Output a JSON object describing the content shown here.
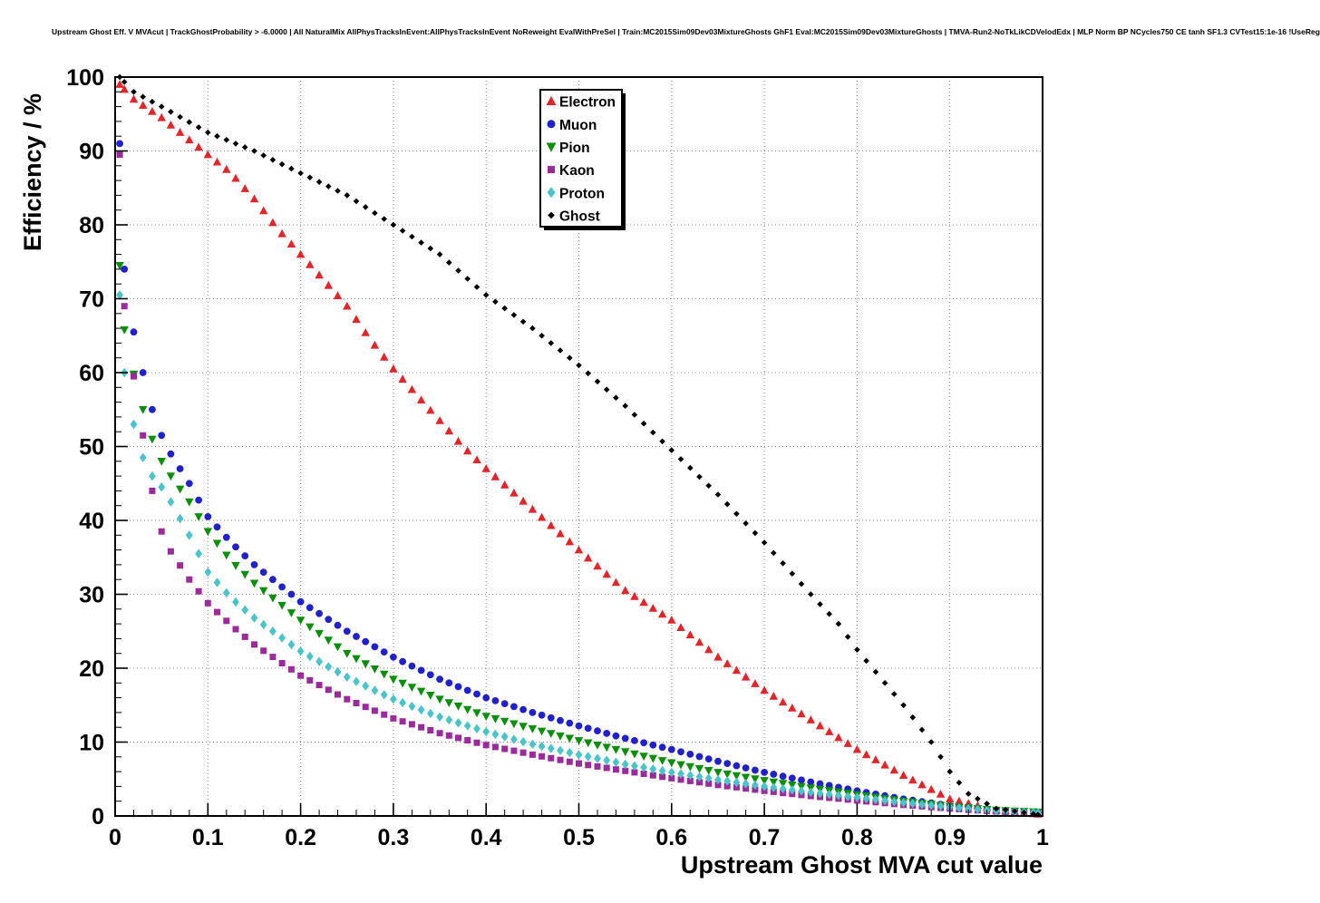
{
  "title": "Upstream Ghost Eff. V MVAcut | TrackGhostProbability > -6.0000 | All NaturalMix AllPhysTracksInEvent:AllPhysTracksInEvent NoReweight EvalWithPreSel | Train:MC2015Sim09Dev03MixtureGhosts GhF1 Eval:MC2015Sim09Dev03MixtureGhosts | TMVA-Run2-NoTkLikCDVelodEdx | MLP Norm BP NCycles750 CE tanh SF1.3 CVTest15:1e-16 !UseReg",
  "chart_data": {
    "type": "scatter",
    "xlabel": "Upstream Ghost MVA cut value",
    "ylabel": "Efficiency / %",
    "xlim": [
      0,
      1
    ],
    "ylim": [
      0,
      100
    ],
    "xticks": [
      "0",
      "0.1",
      "0.2",
      "0.3",
      "0.4",
      "0.5",
      "0.6",
      "0.7",
      "0.8",
      "0.9",
      "1"
    ],
    "yticks": [
      "0",
      "10",
      "20",
      "30",
      "40",
      "50",
      "60",
      "70",
      "80",
      "90",
      "100"
    ],
    "grid": true,
    "grid_style": "dotted",
    "legend_position": "top-center",
    "frame_color": "#000000",
    "grid_color": "#8a8a8a",
    "series": [
      {
        "name": "Electron",
        "marker": "triangle-up",
        "color": "#e3252a",
        "points": [
          [
            0.005,
            99
          ],
          [
            0.02,
            97
          ],
          [
            0.05,
            94.5
          ],
          [
            0.08,
            91.5
          ],
          [
            0.1,
            89.5
          ],
          [
            0.125,
            87
          ],
          [
            0.15,
            83.5
          ],
          [
            0.175,
            79.5
          ],
          [
            0.2,
            76
          ],
          [
            0.225,
            72.5
          ],
          [
            0.25,
            69
          ],
          [
            0.275,
            64.5
          ],
          [
            0.3,
            60.5
          ],
          [
            0.325,
            57
          ],
          [
            0.35,
            53.5
          ],
          [
            0.375,
            50
          ],
          [
            0.4,
            47
          ],
          [
            0.45,
            41.5
          ],
          [
            0.5,
            36
          ],
          [
            0.55,
            30.5
          ],
          [
            0.6,
            26.5
          ],
          [
            0.65,
            21.5
          ],
          [
            0.7,
            17
          ],
          [
            0.75,
            13
          ],
          [
            0.8,
            9
          ],
          [
            0.85,
            5.5
          ],
          [
            0.9,
            2.3
          ],
          [
            0.95,
            0.8
          ],
          [
            1,
            0.2
          ]
        ]
      },
      {
        "name": "Muon",
        "marker": "circle",
        "color": "#2020cc",
        "points": [
          [
            0.005,
            91
          ],
          [
            0.01,
            74
          ],
          [
            0.02,
            65.5
          ],
          [
            0.03,
            60
          ],
          [
            0.04,
            55
          ],
          [
            0.05,
            51.5
          ],
          [
            0.06,
            49
          ],
          [
            0.08,
            45
          ],
          [
            0.1,
            40.5
          ],
          [
            0.125,
            37
          ],
          [
            0.15,
            34
          ],
          [
            0.2,
            29
          ],
          [
            0.25,
            25
          ],
          [
            0.3,
            21.5
          ],
          [
            0.35,
            18.5
          ],
          [
            0.4,
            16
          ],
          [
            0.45,
            14
          ],
          [
            0.5,
            12.2
          ],
          [
            0.55,
            10.5
          ],
          [
            0.6,
            9
          ],
          [
            0.65,
            7.4
          ],
          [
            0.7,
            5.9
          ],
          [
            0.75,
            4.6
          ],
          [
            0.8,
            3.4
          ],
          [
            0.85,
            2.3
          ],
          [
            0.9,
            1.4
          ],
          [
            0.95,
            0.8
          ],
          [
            1,
            0.4
          ]
        ]
      },
      {
        "name": "Pion",
        "marker": "triangle-down",
        "color": "#0a8f0a",
        "points": [
          [
            0.005,
            74.5
          ],
          [
            0.01,
            65.8
          ],
          [
            0.02,
            59.8
          ],
          [
            0.03,
            55
          ],
          [
            0.04,
            51
          ],
          [
            0.05,
            48
          ],
          [
            0.06,
            46
          ],
          [
            0.08,
            42.5
          ],
          [
            0.1,
            38.5
          ],
          [
            0.125,
            34.5
          ],
          [
            0.15,
            31.5
          ],
          [
            0.2,
            26.5
          ],
          [
            0.25,
            22
          ],
          [
            0.3,
            18.5
          ],
          [
            0.35,
            15.8
          ],
          [
            0.4,
            13.5
          ],
          [
            0.45,
            11.8
          ],
          [
            0.5,
            10.2
          ],
          [
            0.55,
            8.7
          ],
          [
            0.6,
            7.2
          ],
          [
            0.65,
            5.9
          ],
          [
            0.7,
            4.8
          ],
          [
            0.75,
            3.8
          ],
          [
            0.8,
            2.9
          ],
          [
            0.85,
            2
          ],
          [
            0.9,
            1.3
          ],
          [
            0.95,
            0.8
          ],
          [
            1,
            0.5
          ]
        ]
      },
      {
        "name": "Kaon",
        "marker": "square",
        "color": "#9c2a9c",
        "points": [
          [
            0.005,
            89.5
          ],
          [
            0.01,
            69
          ],
          [
            0.02,
            59.5
          ],
          [
            0.03,
            51.5
          ],
          [
            0.04,
            44
          ],
          [
            0.05,
            38.5
          ],
          [
            0.06,
            35.8
          ],
          [
            0.08,
            32
          ],
          [
            0.1,
            28.8
          ],
          [
            0.125,
            25.8
          ],
          [
            0.15,
            23.2
          ],
          [
            0.2,
            19
          ],
          [
            0.25,
            15.8
          ],
          [
            0.3,
            13.2
          ],
          [
            0.35,
            11.2
          ],
          [
            0.4,
            9.6
          ],
          [
            0.45,
            8.3
          ],
          [
            0.5,
            7.1
          ],
          [
            0.55,
            6.1
          ],
          [
            0.6,
            5.1
          ],
          [
            0.65,
            4.2
          ],
          [
            0.7,
            3.4
          ],
          [
            0.75,
            2.7
          ],
          [
            0.8,
            2.1
          ],
          [
            0.85,
            1.5
          ],
          [
            0.9,
            1
          ],
          [
            0.95,
            0.6
          ],
          [
            1,
            0.3
          ]
        ]
      },
      {
        "name": "Proton",
        "marker": "diamond",
        "color": "#49c4c8",
        "points": [
          [
            0.005,
            70.5
          ],
          [
            0.01,
            60
          ],
          [
            0.02,
            53
          ],
          [
            0.03,
            48.5
          ],
          [
            0.04,
            46
          ],
          [
            0.05,
            44.5
          ],
          [
            0.06,
            42.5
          ],
          [
            0.08,
            38
          ],
          [
            0.1,
            33
          ],
          [
            0.125,
            29.5
          ],
          [
            0.15,
            26.8
          ],
          [
            0.2,
            22.3
          ],
          [
            0.25,
            18.8
          ],
          [
            0.3,
            15.8
          ],
          [
            0.35,
            13.4
          ],
          [
            0.4,
            11.4
          ],
          [
            0.45,
            9.7
          ],
          [
            0.5,
            8.3
          ],
          [
            0.55,
            7
          ],
          [
            0.6,
            5.9
          ],
          [
            0.65,
            4.9
          ],
          [
            0.7,
            4
          ],
          [
            0.75,
            3.2
          ],
          [
            0.8,
            2.5
          ],
          [
            0.85,
            1.8
          ],
          [
            0.9,
            1.2
          ],
          [
            0.95,
            0.7
          ],
          [
            1,
            0.4
          ]
        ]
      },
      {
        "name": "Ghost",
        "marker": "small-diamond",
        "color": "#000000",
        "points": [
          [
            0.005,
            100
          ],
          [
            0.02,
            98
          ],
          [
            0.05,
            96
          ],
          [
            0.1,
            92.5
          ],
          [
            0.15,
            90
          ],
          [
            0.2,
            87
          ],
          [
            0.25,
            84
          ],
          [
            0.3,
            80
          ],
          [
            0.35,
            76
          ],
          [
            0.4,
            70.5
          ],
          [
            0.45,
            66
          ],
          [
            0.5,
            61
          ],
          [
            0.55,
            55.5
          ],
          [
            0.6,
            49.5
          ],
          [
            0.65,
            43.5
          ],
          [
            0.7,
            37
          ],
          [
            0.75,
            30
          ],
          [
            0.78,
            26
          ],
          [
            0.8,
            22.5
          ],
          [
            0.83,
            18
          ],
          [
            0.85,
            15
          ],
          [
            0.88,
            10
          ],
          [
            0.9,
            6
          ],
          [
            0.92,
            3
          ],
          [
            0.95,
            1
          ],
          [
            1,
            0.1
          ]
        ]
      }
    ]
  }
}
